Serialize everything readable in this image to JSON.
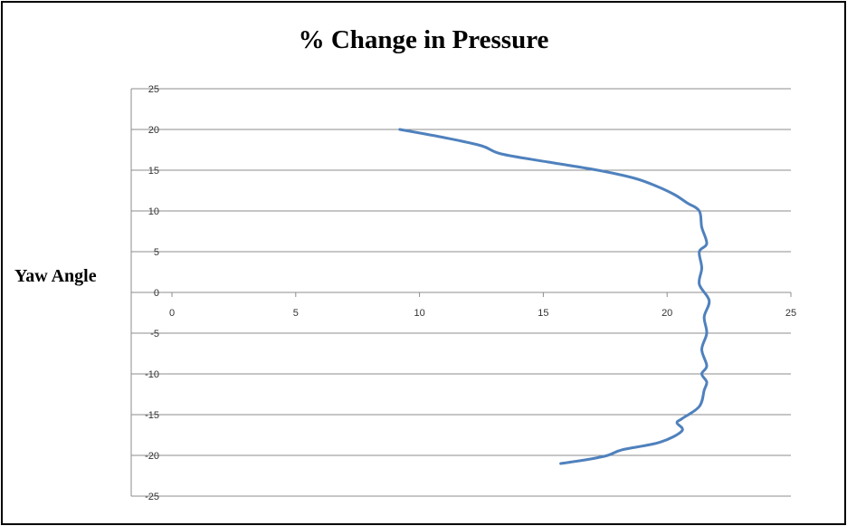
{
  "chart_data": {
    "type": "line",
    "title": "% Change in Pressure",
    "xlabel": "",
    "ylabel": "Yaw Angle",
    "xlim": [
      0,
      25
    ],
    "ylim": [
      -25,
      25
    ],
    "x_ticks": [
      0,
      5,
      10,
      15,
      20,
      25
    ],
    "y_ticks": [
      25,
      20,
      15,
      10,
      5,
      0,
      -5,
      -10,
      -15,
      -20,
      -25
    ],
    "grid": "horizontal",
    "legend": "none",
    "series_color": "#4f81bd",
    "series": [
      {
        "x": [
          9.2,
          11.0,
          12.5,
          13.3,
          15.2,
          17.2,
          18.7,
          19.6,
          20.3,
          20.8,
          21.3,
          21.4,
          21.6,
          21.3,
          21.4,
          21.3,
          21.7,
          21.5,
          21.6,
          21.4,
          21.6,
          21.4,
          21.6,
          21.5,
          21.3,
          20.6,
          20.4,
          20.6,
          19.7,
          18.2,
          17.6,
          16.8,
          15.7
        ],
        "y": [
          20,
          19,
          18,
          17,
          16,
          15,
          14,
          13,
          12,
          11,
          10,
          8,
          6,
          5,
          3,
          1,
          -1,
          -3,
          -5,
          -7,
          -9,
          -10,
          -11,
          -12,
          -14,
          -15.5,
          -16,
          -17,
          -18.4,
          -19.3,
          -20,
          -20.5,
          -21
        ]
      }
    ]
  }
}
